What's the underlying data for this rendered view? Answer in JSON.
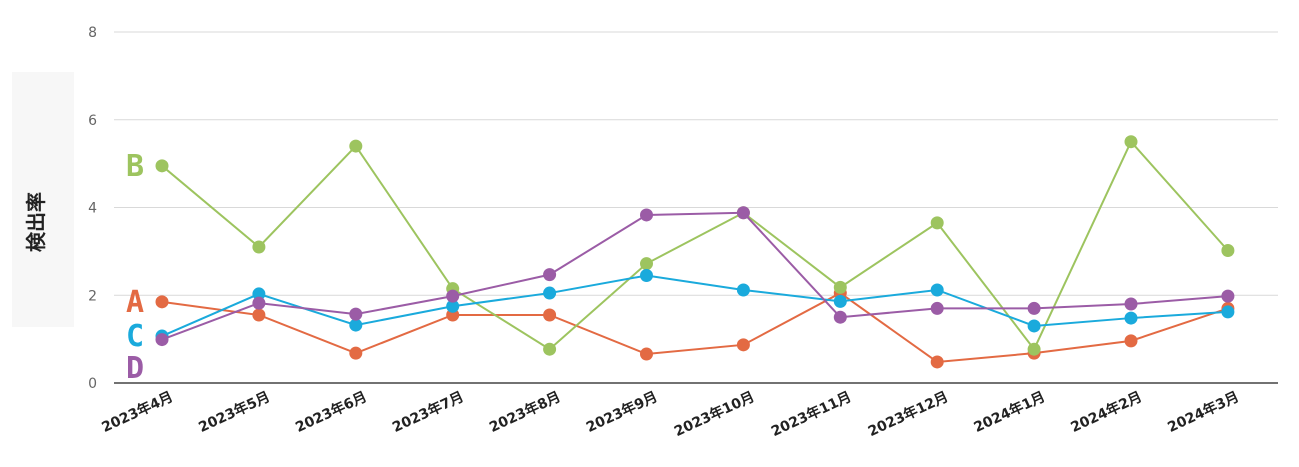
{
  "chart_data": {
    "type": "line",
    "ylabel": "検出率",
    "ylim": [
      0,
      8
    ],
    "yticks": [
      0,
      2,
      4,
      6,
      8
    ],
    "grid": true,
    "categories": [
      "2023年4月",
      "2023年5月",
      "2023年6月",
      "2023年7月",
      "2023年8月",
      "2023年9月",
      "2023年10月",
      "2023年11月",
      "2023年12月",
      "2024年1月",
      "2024年2月",
      "2024年3月"
    ],
    "series": [
      {
        "name": "A",
        "color": "#e36a43",
        "values": [
          1.85,
          1.55,
          0.68,
          1.55,
          1.55,
          0.66,
          0.87,
          2.05,
          0.48,
          0.68,
          0.96,
          1.7
        ]
      },
      {
        "name": "B",
        "color": "#9dc45f",
        "values": [
          4.95,
          3.1,
          5.4,
          2.15,
          0.77,
          2.72,
          3.88,
          2.18,
          3.65,
          0.77,
          5.5,
          3.02
        ]
      },
      {
        "name": "C",
        "color": "#1aaadc",
        "values": [
          1.07,
          2.03,
          1.32,
          1.75,
          2.05,
          2.45,
          2.12,
          1.86,
          2.12,
          1.3,
          1.48,
          1.62
        ]
      },
      {
        "name": "D",
        "color": "#9b5ca6",
        "values": [
          0.99,
          1.82,
          1.57,
          1.98,
          2.47,
          3.83,
          3.88,
          1.5,
          1.7,
          1.7,
          1.8,
          1.98
        ]
      }
    ]
  }
}
